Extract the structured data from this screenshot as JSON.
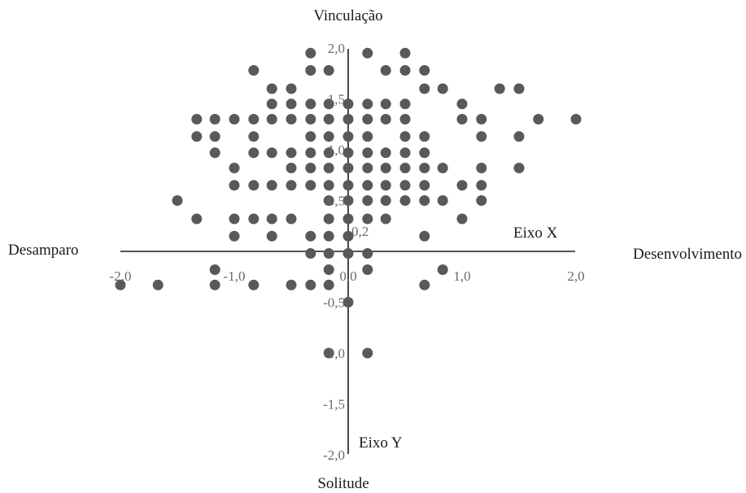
{
  "chart_data": {
    "type": "scatter",
    "title": "",
    "pole_labels": {
      "top": "Vinculação",
      "bottom": "Solitude",
      "left": "Desamparo",
      "right": "Desenvolvimento"
    },
    "axis_names": {
      "x": "Eixo X",
      "y": "Eixo Y"
    },
    "xlim": [
      -2.0,
      2.0
    ],
    "ylim": [
      -2.0,
      2.0
    ],
    "x_ticks": [
      {
        "value": -2.0,
        "label": "-2,0"
      },
      {
        "value": -1.0,
        "label": "-1,0"
      },
      {
        "value": 0.0,
        "label": "0,0"
      },
      {
        "value": 1.0,
        "label": "1,0"
      },
      {
        "value": 2.0,
        "label": "2,0"
      }
    ],
    "y_ticks": [
      {
        "value": 2.0,
        "label": "2,0"
      },
      {
        "value": 1.5,
        "label": "1,5"
      },
      {
        "value": 1.0,
        "label": "1,0"
      },
      {
        "value": 0.5,
        "label": "0,5"
      },
      {
        "value": 0.2,
        "label": "0,2"
      },
      {
        "value": -0.5,
        "label": "-0,5"
      },
      {
        "value": -1.0,
        "label": "-1,0"
      },
      {
        "value": -1.5,
        "label": "-1,5"
      },
      {
        "value": -2.0,
        "label": "-2,0"
      }
    ],
    "grid": false,
    "legend": "none",
    "marker_color": "#595959",
    "points": [
      [
        -0.33,
        1.95
      ],
      [
        0.17,
        1.95
      ],
      [
        0.5,
        1.95
      ],
      [
        -0.83,
        1.78
      ],
      [
        -0.33,
        1.78
      ],
      [
        -0.17,
        1.78
      ],
      [
        0.33,
        1.78
      ],
      [
        0.5,
        1.78
      ],
      [
        0.67,
        1.78
      ],
      [
        -0.67,
        1.6
      ],
      [
        -0.5,
        1.6
      ],
      [
        0.67,
        1.6
      ],
      [
        0.83,
        1.6
      ],
      [
        1.33,
        1.6
      ],
      [
        1.5,
        1.6
      ],
      [
        -0.67,
        1.45
      ],
      [
        -0.5,
        1.45
      ],
      [
        -0.33,
        1.45
      ],
      [
        -0.17,
        1.45
      ],
      [
        0.0,
        1.45
      ],
      [
        0.17,
        1.45
      ],
      [
        0.33,
        1.45
      ],
      [
        0.5,
        1.45
      ],
      [
        1.0,
        1.45
      ],
      [
        -1.33,
        1.3
      ],
      [
        -1.17,
        1.3
      ],
      [
        -1.0,
        1.3
      ],
      [
        -0.83,
        1.3
      ],
      [
        -0.67,
        1.3
      ],
      [
        -0.5,
        1.3
      ],
      [
        -0.33,
        1.3
      ],
      [
        -0.17,
        1.3
      ],
      [
        0.0,
        1.3
      ],
      [
        0.17,
        1.3
      ],
      [
        0.33,
        1.3
      ],
      [
        0.5,
        1.3
      ],
      [
        1.0,
        1.3
      ],
      [
        1.17,
        1.3
      ],
      [
        1.67,
        1.3
      ],
      [
        2.0,
        1.3
      ],
      [
        -1.33,
        1.13
      ],
      [
        -1.17,
        1.13
      ],
      [
        -0.83,
        1.13
      ],
      [
        -0.33,
        1.13
      ],
      [
        -0.17,
        1.13
      ],
      [
        0.0,
        1.13
      ],
      [
        0.17,
        1.13
      ],
      [
        0.5,
        1.13
      ],
      [
        0.67,
        1.13
      ],
      [
        1.17,
        1.13
      ],
      [
        1.5,
        1.13
      ],
      [
        -1.17,
        0.97
      ],
      [
        -0.83,
        0.97
      ],
      [
        -0.67,
        0.97
      ],
      [
        -0.5,
        0.97
      ],
      [
        -0.33,
        0.97
      ],
      [
        -0.17,
        0.97
      ],
      [
        0.0,
        0.97
      ],
      [
        0.17,
        0.97
      ],
      [
        0.33,
        0.97
      ],
      [
        0.5,
        0.97
      ],
      [
        0.67,
        0.97
      ],
      [
        -1.0,
        0.82
      ],
      [
        -0.5,
        0.82
      ],
      [
        -0.33,
        0.82
      ],
      [
        -0.17,
        0.82
      ],
      [
        0.0,
        0.82
      ],
      [
        0.17,
        0.82
      ],
      [
        0.33,
        0.82
      ],
      [
        0.5,
        0.82
      ],
      [
        0.67,
        0.82
      ],
      [
        0.83,
        0.82
      ],
      [
        1.17,
        0.82
      ],
      [
        1.5,
        0.82
      ],
      [
        -1.0,
        0.65
      ],
      [
        -0.83,
        0.65
      ],
      [
        -0.67,
        0.65
      ],
      [
        -0.5,
        0.65
      ],
      [
        -0.33,
        0.65
      ],
      [
        -0.17,
        0.65
      ],
      [
        0.0,
        0.65
      ],
      [
        0.17,
        0.65
      ],
      [
        0.33,
        0.65
      ],
      [
        0.5,
        0.65
      ],
      [
        0.67,
        0.65
      ],
      [
        1.0,
        0.65
      ],
      [
        1.17,
        0.65
      ],
      [
        -1.5,
        0.5
      ],
      [
        -0.17,
        0.5
      ],
      [
        0.0,
        0.5
      ],
      [
        0.17,
        0.5
      ],
      [
        0.33,
        0.5
      ],
      [
        0.5,
        0.5
      ],
      [
        0.67,
        0.5
      ],
      [
        0.83,
        0.5
      ],
      [
        1.17,
        0.5
      ],
      [
        -1.33,
        0.32
      ],
      [
        -1.0,
        0.32
      ],
      [
        -0.83,
        0.32
      ],
      [
        -0.67,
        0.32
      ],
      [
        -0.5,
        0.32
      ],
      [
        -0.17,
        0.32
      ],
      [
        0.0,
        0.32
      ],
      [
        0.17,
        0.32
      ],
      [
        0.33,
        0.32
      ],
      [
        1.0,
        0.32
      ],
      [
        -1.0,
        0.15
      ],
      [
        -0.67,
        0.15
      ],
      [
        -0.33,
        0.15
      ],
      [
        -0.17,
        0.15
      ],
      [
        0.0,
        0.15
      ],
      [
        0.67,
        0.15
      ],
      [
        -0.33,
        -0.02
      ],
      [
        -0.17,
        -0.02
      ],
      [
        0.0,
        -0.02
      ],
      [
        0.17,
        -0.02
      ],
      [
        -1.17,
        -0.18
      ],
      [
        -0.17,
        -0.18
      ],
      [
        0.17,
        -0.18
      ],
      [
        0.83,
        -0.18
      ],
      [
        -2.0,
        -0.33
      ],
      [
        -1.67,
        -0.33
      ],
      [
        -1.17,
        -0.33
      ],
      [
        -0.83,
        -0.33
      ],
      [
        -0.5,
        -0.33
      ],
      [
        -0.33,
        -0.33
      ],
      [
        -0.17,
        -0.33
      ],
      [
        0.67,
        -0.33
      ],
      [
        0.0,
        -0.5
      ],
      [
        -0.17,
        -1.0
      ],
      [
        0.17,
        -1.0
      ]
    ]
  }
}
